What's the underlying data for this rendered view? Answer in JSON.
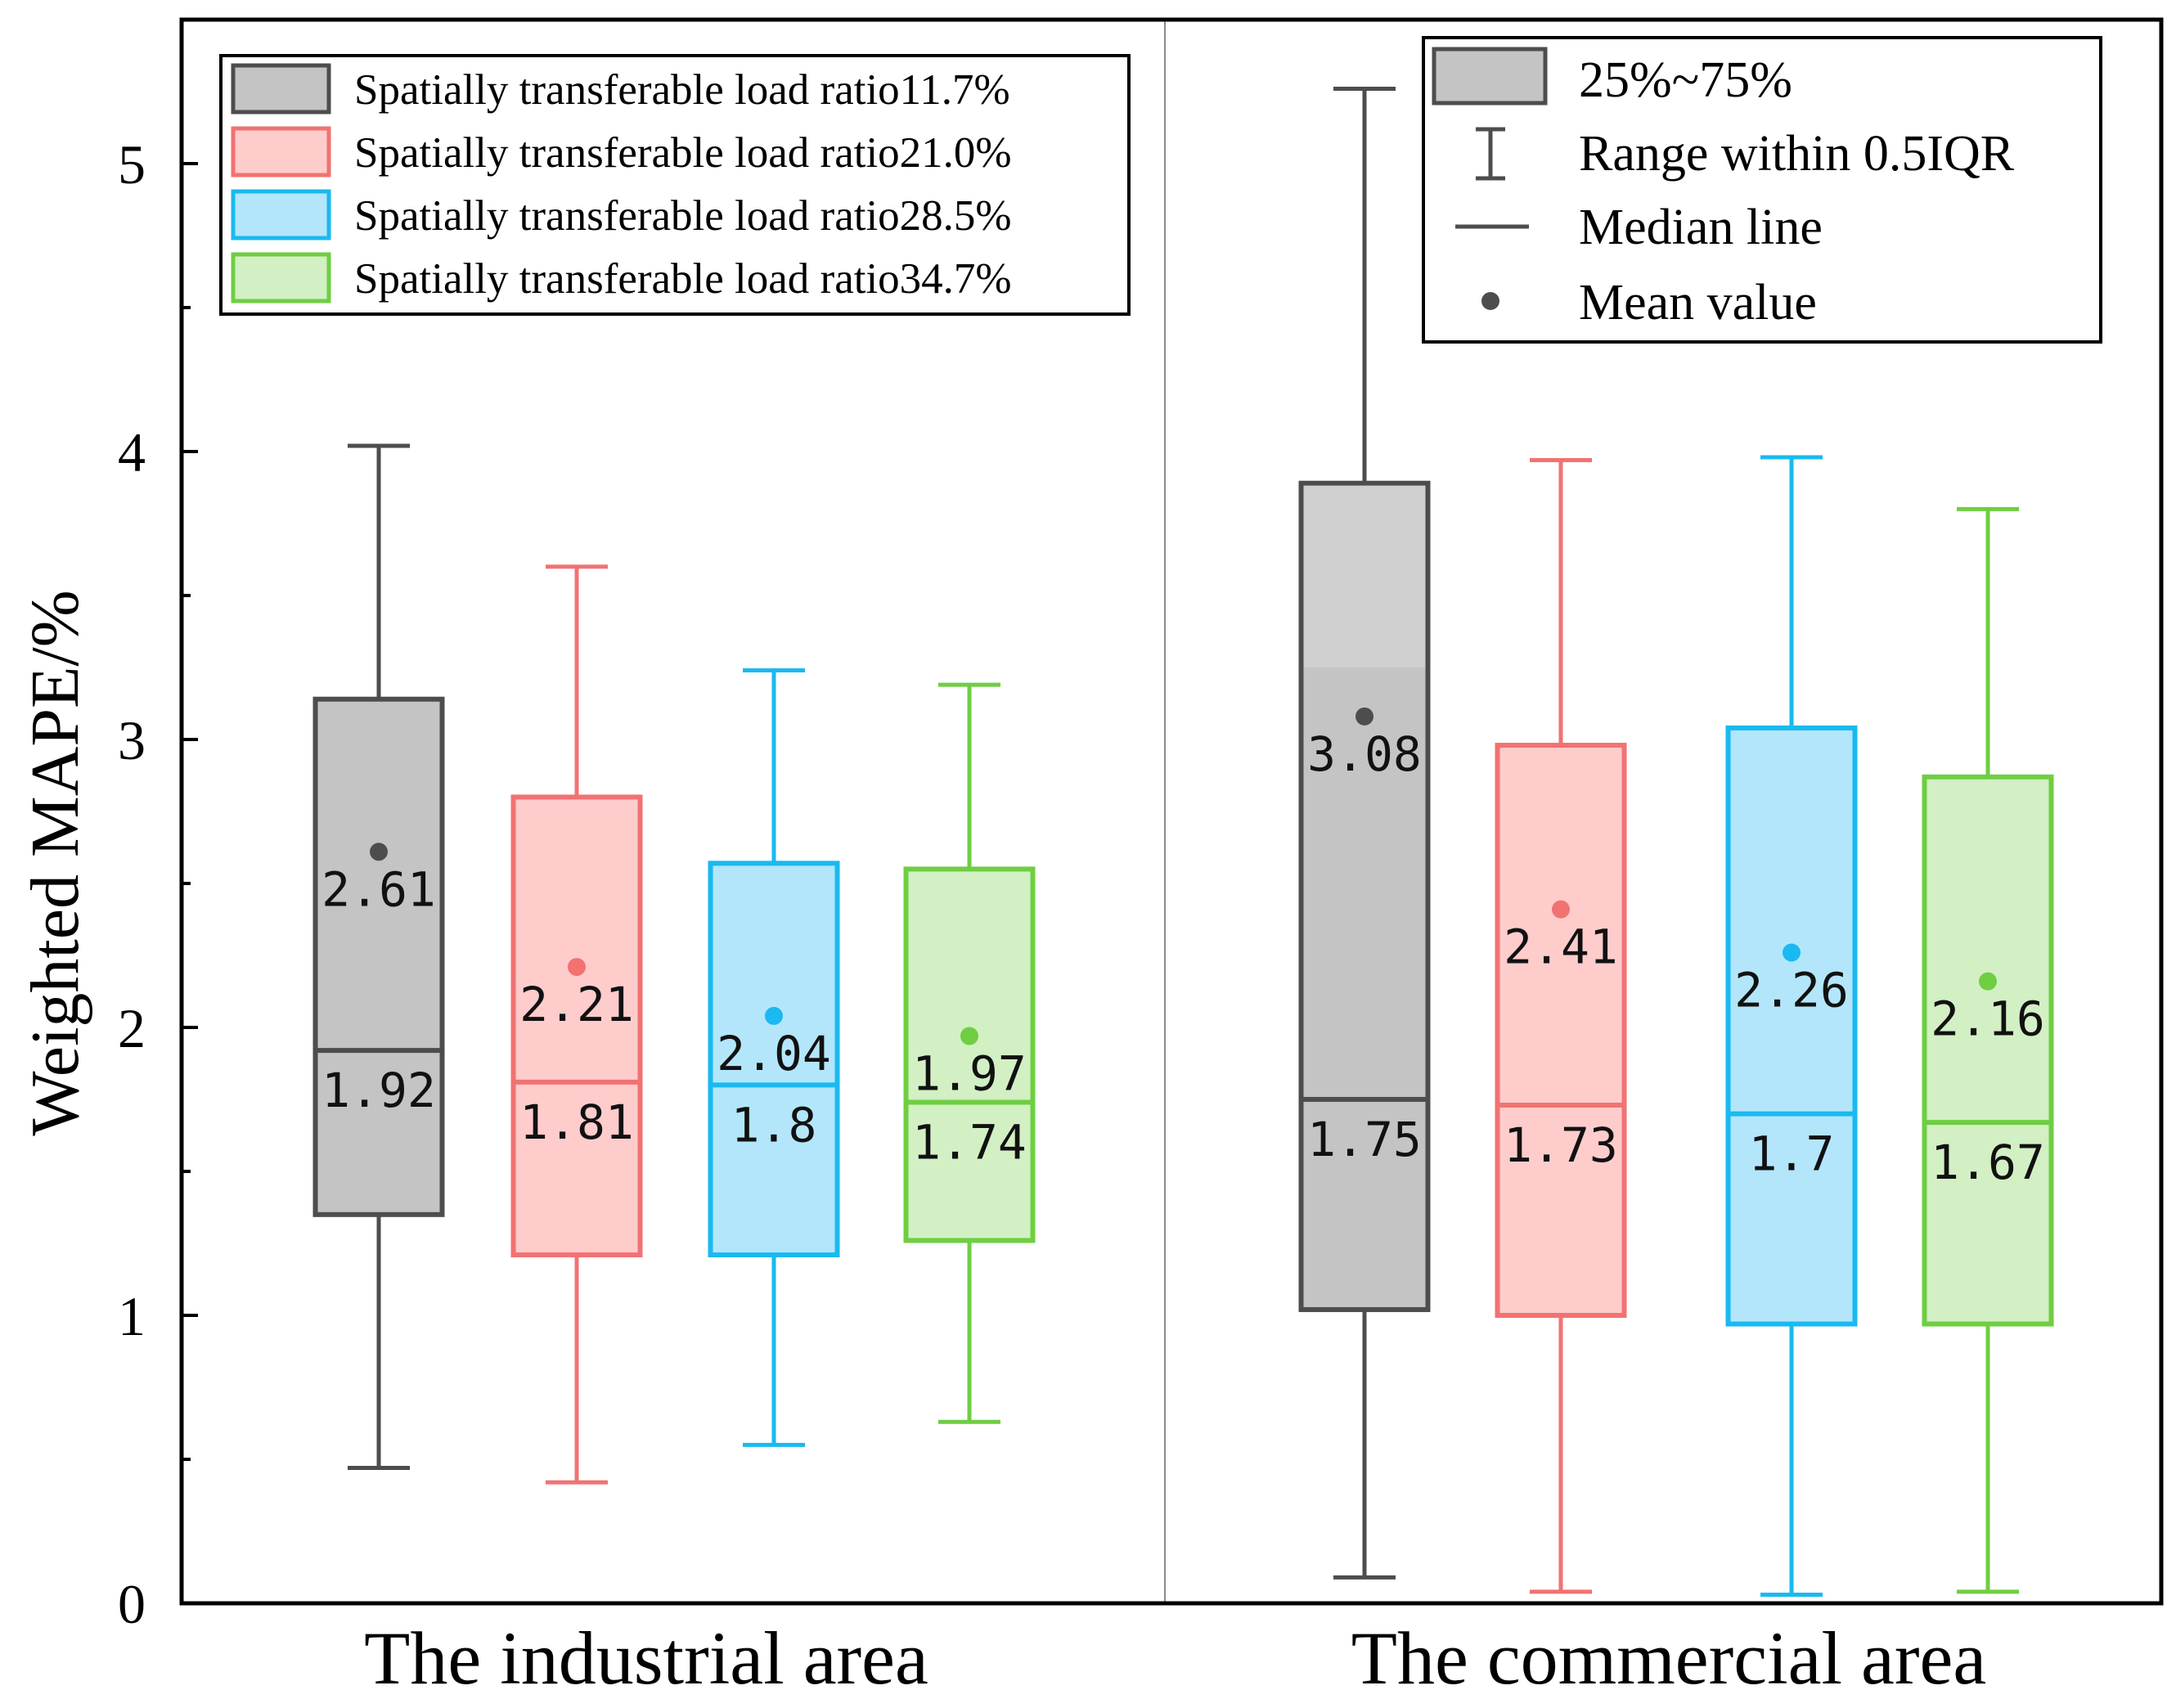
{
  "chart_data": {
    "type": "box",
    "ylabel": "Weighted MAPE/%",
    "ylim": [
      0,
      5.5
    ],
    "yticks": [
      "0",
      "1",
      "2",
      "3",
      "4",
      "5"
    ],
    "groups": [
      "The industrial area",
      "The commercial area"
    ],
    "series": [
      {
        "name": "Spatially transferable load ratio11.7%",
        "color": "#4d4d4d",
        "fill": "#c4c4c4",
        "boxes": [
          {
            "whisker_low": 0.47,
            "q1": 1.35,
            "median": 1.92,
            "q3": 3.14,
            "whisker_high": 4.02,
            "mean": 2.61,
            "mean_label": "2.61",
            "median_label": "1.92"
          },
          {
            "whisker_low": 0.09,
            "q1": 1.02,
            "median": 1.75,
            "q3": 3.89,
            "whisker_high": 5.26,
            "mean": 3.08,
            "mean_label": "3.08",
            "median_label": "1.75"
          }
        ]
      },
      {
        "name": "Spatially transferable load ratio21.0%",
        "color": "#f27272",
        "fill": "#ffcccc",
        "boxes": [
          {
            "whisker_low": 0.42,
            "q1": 1.21,
            "median": 1.81,
            "q3": 2.8,
            "whisker_high": 3.6,
            "mean": 2.21,
            "mean_label": "2.21",
            "median_label": "1.81"
          },
          {
            "whisker_low": 0.04,
            "q1": 1.0,
            "median": 1.73,
            "q3": 2.98,
            "whisker_high": 3.97,
            "mean": 2.41,
            "mean_label": "2.41",
            "median_label": "1.73"
          }
        ]
      },
      {
        "name": "Spatially transferable load ratio28.5%",
        "color": "#1ab9f0",
        "fill": "#b3e6fb",
        "boxes": [
          {
            "whisker_low": 0.55,
            "q1": 1.21,
            "median": 1.8,
            "q3": 2.57,
            "whisker_high": 3.24,
            "mean": 2.04,
            "mean_label": "2.04",
            "median_label": "1.8"
          },
          {
            "whisker_low": 0.03,
            "q1": 0.97,
            "median": 1.7,
            "q3": 3.04,
            "whisker_high": 3.98,
            "mean": 2.26,
            "mean_label": "2.26",
            "median_label": "1.7"
          }
        ]
      },
      {
        "name": "Spatially transferable load ratio34.7%",
        "color": "#6fce42",
        "fill": "#d2f0c4",
        "boxes": [
          {
            "whisker_low": 0.63,
            "q1": 1.26,
            "median": 1.74,
            "q3": 2.55,
            "whisker_high": 3.19,
            "mean": 1.97,
            "mean_label": "1.97",
            "median_label": "1.74"
          },
          {
            "whisker_low": 0.04,
            "q1": 0.97,
            "median": 1.67,
            "q3": 2.87,
            "whisker_high": 3.8,
            "mean": 2.16,
            "mean_label": "2.16",
            "median_label": "1.67"
          }
        ]
      }
    ],
    "legend": {
      "position": "top-left",
      "entries": [
        "Spatially transferable load ratio11.7%",
        "Spatially transferable load ratio21.0%",
        "Spatially transferable load ratio28.5%",
        "Spatially transferable load ratio34.7%"
      ]
    },
    "key_legend": {
      "position": "top-right",
      "box_label": "25%~75%",
      "whisker_label": "Range within 0.5IQR",
      "median_label": "Median line",
      "mean_label": "Mean value"
    }
  }
}
